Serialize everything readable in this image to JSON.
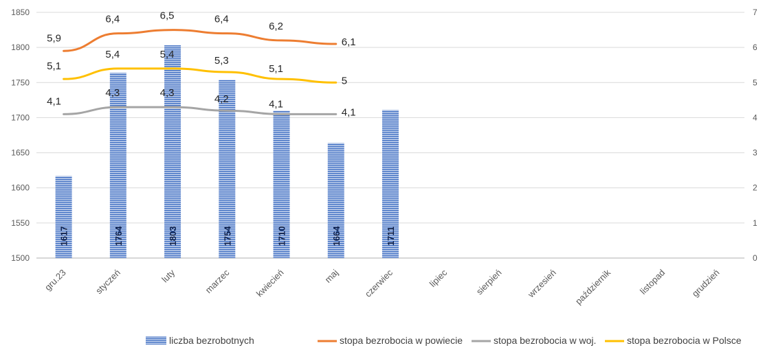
{
  "chart_data": {
    "type": "bar",
    "categories": [
      "gru.23",
      "styczeń",
      "luty",
      "marzec",
      "kwiecień",
      "maj",
      "czerwiec",
      "lipiec",
      "sierpień",
      "wrzesień",
      "październik",
      "listopad",
      "grudzień"
    ],
    "bar_series": {
      "name": "liczba bezrobotnych",
      "values": [
        1617,
        1764,
        1803,
        1754,
        1710,
        1664,
        1711,
        null,
        null,
        null,
        null,
        null,
        null
      ],
      "color": "#4472c4"
    },
    "line_series": [
      {
        "name": "stopa bezrobocia w powiecie",
        "values": [
          5.9,
          6.4,
          6.5,
          6.4,
          6.2,
          6.1,
          null,
          null,
          null,
          null,
          null,
          null,
          null
        ],
        "labels": [
          "5,9",
          "6,4",
          "6,5",
          "6,4",
          "6,2",
          "6,1"
        ],
        "color": "#ed7d31"
      },
      {
        "name": "stopa bezrobocia w woj.",
        "values": [
          4.1,
          4.3,
          4.3,
          4.2,
          4.1,
          4.1,
          null,
          null,
          null,
          null,
          null,
          null,
          null
        ],
        "labels": [
          "4,1",
          "4,3",
          "4,3",
          "4,2",
          "4,1",
          "4,1"
        ],
        "color": "#a5a5a5"
      },
      {
        "name": "stopa bezrobocia w Polsce",
        "values": [
          5.1,
          5.4,
          5.4,
          5.3,
          5.1,
          5.0,
          null,
          null,
          null,
          null,
          null,
          null,
          null
        ],
        "labels": [
          "5,1",
          "5,4",
          "5,4",
          "5,3",
          "5,1",
          "5"
        ],
        "color": "#ffc000"
      }
    ],
    "left_axis": {
      "min": 1500,
      "max": 1850,
      "step": 50,
      "ticks": [
        "1500",
        "1550",
        "1600",
        "1650",
        "1700",
        "1750",
        "1800",
        "1850"
      ]
    },
    "right_axis": {
      "min": 0,
      "max": 7,
      "step": 1,
      "ticks": [
        "0",
        "1",
        "2",
        "3",
        "4",
        "5",
        "6",
        "7"
      ]
    },
    "grid": true,
    "legend_position": "bottom"
  }
}
